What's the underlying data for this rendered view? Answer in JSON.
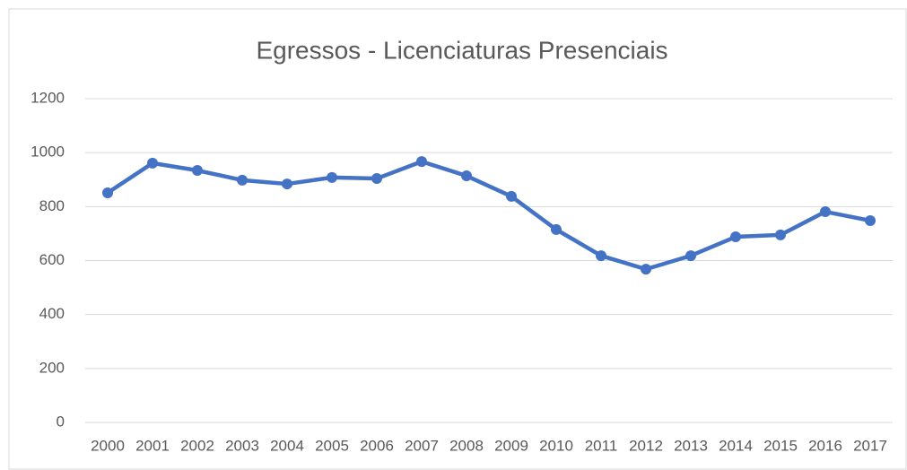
{
  "chart_data": {
    "type": "line",
    "title": "Egressos - Licenciaturas Presenciais",
    "categories": [
      "2000",
      "2001",
      "2002",
      "2003",
      "2004",
      "2005",
      "2006",
      "2007",
      "2008",
      "2009",
      "2010",
      "2011",
      "2012",
      "2013",
      "2014",
      "2015",
      "2016",
      "2017"
    ],
    "series": [
      {
        "name": "Egressos",
        "color": "#4472c4",
        "values": [
          851,
          961,
          934,
          898,
          884,
          908,
          904,
          967,
          914,
          838,
          715,
          618,
          568,
          618,
          688,
          695,
          781,
          748
        ]
      }
    ],
    "ylim": [
      0,
      1200
    ],
    "yticks": [
      0,
      200,
      400,
      600,
      800,
      1000,
      1200
    ],
    "grid": true
  }
}
